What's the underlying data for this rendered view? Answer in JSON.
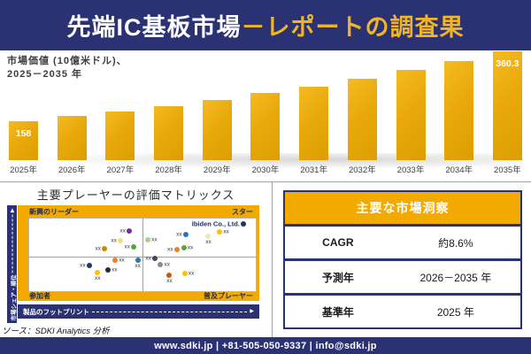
{
  "header": {
    "title_white": "先端IC基板市場",
    "title_gold": "－レポートの調査果"
  },
  "chart_data": [
    {
      "type": "bar",
      "title": "市場価値 (10億米ドル)、2025－2035 年",
      "caption_line1": "市場価値 (10億米ドル)、",
      "caption_line2": "2025－2035 年",
      "categories": [
        "2025年",
        "2026年",
        "2027年",
        "2028年",
        "2029年",
        "2030年",
        "2031年",
        "2032年",
        "2033年",
        "2034年",
        "2035年"
      ],
      "values": [
        158,
        171.6,
        186.3,
        202.4,
        219.8,
        238.7,
        259.2,
        281.5,
        305.7,
        332.0,
        360.3
      ],
      "value_labels": {
        "0": "158",
        "10": "360.3"
      },
      "ylim": [
        0,
        380
      ],
      "bar_color": "#E9A90B"
    },
    {
      "type": "scatter",
      "title": "主要プレーヤーの評価マトリックス",
      "xlabel": "製品のフットプリント",
      "ylabel": "市場シェア・順位",
      "quadrants": {
        "top_left": "新興のリーダー",
        "top_right": "スター",
        "bottom_left": "参加者",
        "bottom_right": "普及プレーヤー"
      },
      "points": [
        {
          "x": 44.1,
          "y": 17.0,
          "color": "#7030A0",
          "label": "xx",
          "pos": "left"
        },
        {
          "x": 40.2,
          "y": 30.0,
          "color": "#EFDF7E",
          "label": "xx",
          "pos": "left"
        },
        {
          "x": 33.2,
          "y": 42.0,
          "color": "#BF9000",
          "label": "xx",
          "pos": "left"
        },
        {
          "x": 46.1,
          "y": 39.3,
          "color": "#58A33C",
          "label": "xx",
          "pos": "left"
        },
        {
          "x": 38.0,
          "y": 57.5,
          "color": "#ED7D31",
          "label": "xx",
          "pos": "right"
        },
        {
          "x": 47.9,
          "y": 56.8,
          "color": "#2E75B6",
          "label": "xx",
          "pos": "below"
        },
        {
          "x": 26.4,
          "y": 65.1,
          "color": "#1F3864",
          "label": "xx",
          "pos": "left"
        },
        {
          "x": 34.8,
          "y": 71.1,
          "color": "#262B33",
          "label": "xx",
          "pos": "right"
        },
        {
          "x": 30.2,
          "y": 74.2,
          "color": "#FFC000",
          "label": "xx",
          "pos": "below"
        },
        {
          "x": 94.5,
          "y": 7.5,
          "color": "#1F3864",
          "label": "Ibiden Co., Ltd.",
          "pos": "left",
          "highlight": true
        },
        {
          "x": 69.0,
          "y": 21.8,
          "color": "#2E75B6",
          "label": "xx",
          "pos": "left"
        },
        {
          "x": 84.1,
          "y": 17.9,
          "color": "#FFC000",
          "label": "xx",
          "pos": "right"
        },
        {
          "x": 79.1,
          "y": 23.8,
          "color": "#F0E6B4",
          "label": "xx",
          "pos": "below"
        },
        {
          "x": 52.4,
          "y": 29.8,
          "color": "#A9D18E",
          "label": "xx",
          "pos": "right"
        },
        {
          "x": 65.1,
          "y": 43.2,
          "color": "#ED7D31",
          "label": "xx",
          "pos": "left"
        },
        {
          "x": 68.3,
          "y": 40.5,
          "color": "#58A33C",
          "label": "xx",
          "pos": "right"
        },
        {
          "x": 55.4,
          "y": 55.1,
          "color": "#3F4A63",
          "label": "xx",
          "pos": "left"
        },
        {
          "x": 58.0,
          "y": 63.1,
          "color": "#8C8C8C",
          "label": "xx",
          "pos": "right"
        },
        {
          "x": 61.9,
          "y": 78.2,
          "color": "#C55A11",
          "label": "xx",
          "pos": "below"
        },
        {
          "x": 68.7,
          "y": 76.2,
          "color": "#FFC000",
          "label": "xx",
          "pos": "right"
        }
      ]
    }
  ],
  "insights": {
    "title": "主要な市場洞察",
    "rows": [
      {
        "label": "CAGR",
        "value": "約8.6%"
      },
      {
        "label": "予測年",
        "value": "2026－2035 年"
      },
      {
        "label": "基準年",
        "value": "2025 年"
      }
    ]
  },
  "source": "ソース：SDKI Analytics 分析",
  "footer": {
    "contact": "www.sdki.jp | +81-505-050-9337 | info@sdki.jp"
  },
  "colors": {
    "navy": "#2B3274",
    "gold_accent": "#F2A900",
    "bar_gold": "#E9A90B",
    "title_gold": "#F0B428"
  }
}
